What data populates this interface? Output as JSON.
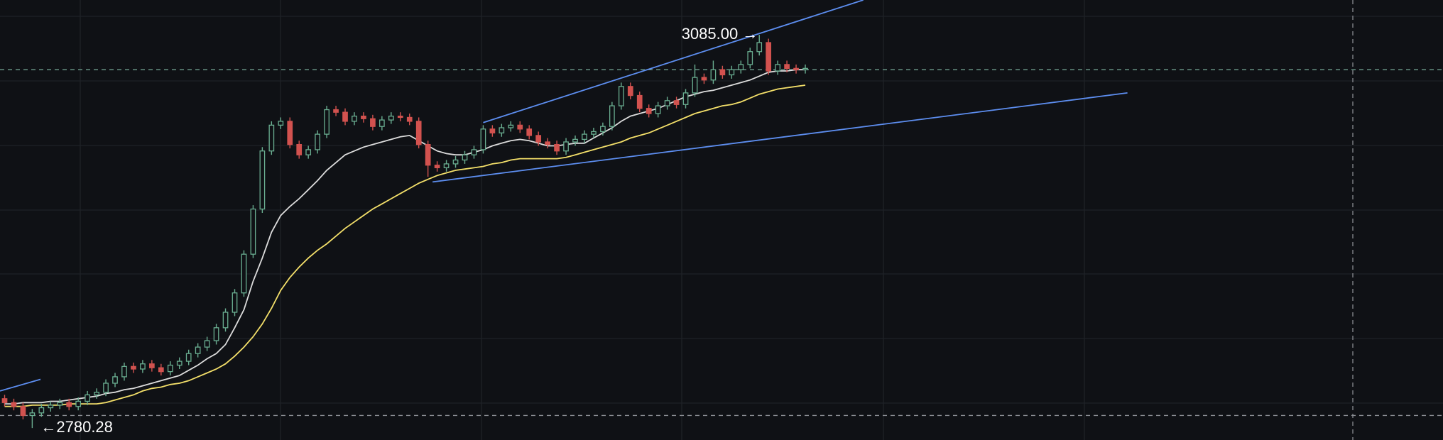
{
  "chart_data": {
    "type": "candlestick",
    "open": [
      2803,
      2800,
      2797,
      2790,
      2792,
      2796,
      2798,
      2800,
      2797,
      2801,
      2806,
      2808,
      2815,
      2820,
      2828,
      2826,
      2830,
      2827,
      2824,
      2829,
      2832,
      2838,
      2843,
      2848,
      2858,
      2870,
      2885,
      2915,
      2950,
      2995,
      3015,
      3018,
      3000,
      2992,
      2996,
      3008,
      3027,
      3025,
      3018,
      3022,
      3020,
      3014,
      3019,
      3022,
      3021,
      3018,
      3000,
      2984,
      2982,
      2985,
      2988,
      2992,
      2996,
      3012,
      3009,
      3013,
      3015,
      3012,
      3007,
      3002,
      3000,
      2995,
      3002,
      3004,
      3008,
      3010,
      3014,
      3030,
      3045,
      3038,
      3028,
      3024,
      3030,
      3034,
      3031,
      3040,
      3052,
      3050,
      3058,
      3054,
      3058,
      3062,
      3072,
      3079,
      3057,
      3062,
      3059,
      3058
    ],
    "high": [
      2806,
      2803,
      2800,
      2795,
      2799,
      2801,
      2803,
      2803,
      2804,
      2809,
      2811,
      2818,
      2823,
      2831,
      2831,
      2833,
      2833,
      2830,
      2832,
      2835,
      2841,
      2846,
      2851,
      2861,
      2873,
      2888,
      2918,
      2953,
      2998,
      3018,
      3021,
      3021,
      3003,
      2999,
      3011,
      3030,
      3030,
      3028,
      3025,
      3025,
      3023,
      3022,
      3025,
      3025,
      3024,
      3021,
      3003,
      2987,
      2988,
      2991,
      2995,
      2999,
      3015,
      3015,
      3016,
      3018,
      3018,
      3015,
      3010,
      3005,
      3003,
      3005,
      3007,
      3011,
      3013,
      3017,
      3033,
      3048,
      3048,
      3041,
      3031,
      3033,
      3037,
      3037,
      3043,
      3062,
      3055,
      3065,
      3061,
      3061,
      3065,
      3075,
      3085,
      3082,
      3065,
      3065,
      3062,
      3062
    ],
    "low": [
      2797,
      2794,
      2787,
      2780.28,
      2789,
      2793,
      2795,
      2794,
      2794,
      2798,
      2803,
      2805,
      2812,
      2817,
      2823,
      2823,
      2824,
      2821,
      2821,
      2826,
      2829,
      2835,
      2840,
      2845,
      2855,
      2867,
      2882,
      2912,
      2947,
      2992,
      3012,
      2997,
      2989,
      2989,
      2993,
      3005,
      3022,
      3015,
      3015,
      3017,
      3011,
      3011,
      3016,
      3018,
      3015,
      2997,
      2975,
      2979,
      2979,
      2982,
      2985,
      2989,
      2993,
      3006,
      3006,
      3010,
      3009,
      3004,
      2999,
      2997,
      2992,
      2992,
      2999,
      3001,
      3005,
      3007,
      3011,
      3027,
      3035,
      3025,
      3021,
      3021,
      3027,
      3028,
      3028,
      3037,
      3047,
      3047,
      3051,
      3051,
      3055,
      3059,
      3069,
      3054,
      3054,
      3056,
      3055,
      3055
    ],
    "close": [
      2800,
      2797,
      2790,
      2792,
      2796,
      2798,
      2800,
      2797,
      2801,
      2806,
      2808,
      2815,
      2820,
      2828,
      2826,
      2830,
      2827,
      2824,
      2829,
      2832,
      2838,
      2843,
      2848,
      2858,
      2870,
      2885,
      2915,
      2950,
      2995,
      3015,
      3018,
      3000,
      2992,
      2996,
      3008,
      3027,
      3025,
      3018,
      3022,
      3020,
      3014,
      3019,
      3022,
      3021,
      3018,
      3000,
      2984,
      2982,
      2985,
      2988,
      2992,
      2996,
      3012,
      3009,
      3013,
      3015,
      3012,
      3007,
      3002,
      3000,
      2995,
      3002,
      3004,
      3008,
      3010,
      3014,
      3030,
      3045,
      3038,
      3028,
      3024,
      3030,
      3034,
      3031,
      3040,
      3052,
      3050,
      3058,
      3054,
      3058,
      3062,
      3072,
      3079,
      3057,
      3062,
      3059,
      3058,
      3059
    ],
    "up_color": "#6aae91",
    "down_color": "#d2524f",
    "ylim": [
      2771,
      3112
    ],
    "series": [
      {
        "color": "#dcdcdc",
        "values": [
          2799,
          2799,
          2800,
          2800,
          2800,
          2801,
          2801,
          2802,
          2803,
          2804,
          2805,
          2807,
          2808,
          2810,
          2811,
          2813,
          2815,
          2817,
          2819,
          2821,
          2825,
          2829,
          2834,
          2838,
          2845,
          2858,
          2872,
          2894,
          2912,
          2932,
          2945,
          2952,
          2958,
          2965,
          2972,
          2980,
          2986,
          2992,
          2995,
          2998,
          3000,
          3002,
          3004,
          3006,
          3007,
          3003,
          2999,
          2995,
          2993,
          2992,
          2992,
          2994,
          2996,
          2999,
          3001,
          3003,
          3004,
          3003,
          3001,
          2999,
          2999,
          3000,
          3001,
          3001,
          3005,
          3009,
          3013,
          3018,
          3022,
          3024,
          3026,
          3028,
          3031,
          3034,
          3037,
          3039,
          3041,
          3042,
          3044,
          3046,
          3048,
          3050,
          3053,
          3056,
          3057,
          3057,
          3058,
          3058
        ]
      },
      {
        "color": "#f4e06a",
        "values": [
          2797,
          2797,
          2797,
          2798,
          2798,
          2798,
          2798,
          2799,
          2799,
          2799,
          2799,
          2800,
          2802,
          2804,
          2806,
          2809,
          2811,
          2812,
          2814,
          2815,
          2817,
          2820,
          2823,
          2826,
          2830,
          2836,
          2843,
          2851,
          2861,
          2873,
          2887,
          2897,
          2905,
          2912,
          2918,
          2923,
          2929,
          2935,
          2940,
          2945,
          2950,
          2954,
          2958,
          2962,
          2966,
          2970,
          2973,
          2976,
          2978,
          2980,
          2981,
          2982,
          2983,
          2985,
          2986,
          2988,
          2989,
          2989,
          2989,
          2989,
          2989,
          2990,
          2992,
          2994,
          2996,
          2998,
          3000,
          3002,
          3005,
          3007,
          3009,
          3012,
          3015,
          3018,
          3021,
          3024,
          3026,
          3028,
          3030,
          3031,
          3033,
          3036,
          3039,
          3041,
          3043,
          3044,
          3045,
          3046
        ]
      }
    ],
    "trend_color": "#5d8ef0",
    "trend_lines": [
      {
        "x": [
          52,
          93.3
        ],
        "y": [
          3017,
          3112
        ]
      },
      {
        "x": [
          46.5,
          122
        ],
        "y": [
          2971,
          3040
        ]
      },
      {
        "x": [
          -0.5,
          3.9
        ],
        "y": [
          2809,
          2818
        ]
      }
    ],
    "price_lines": [
      3058,
      2790
    ],
    "high_label": "3085.00",
    "low_label": "2780.28"
  }
}
